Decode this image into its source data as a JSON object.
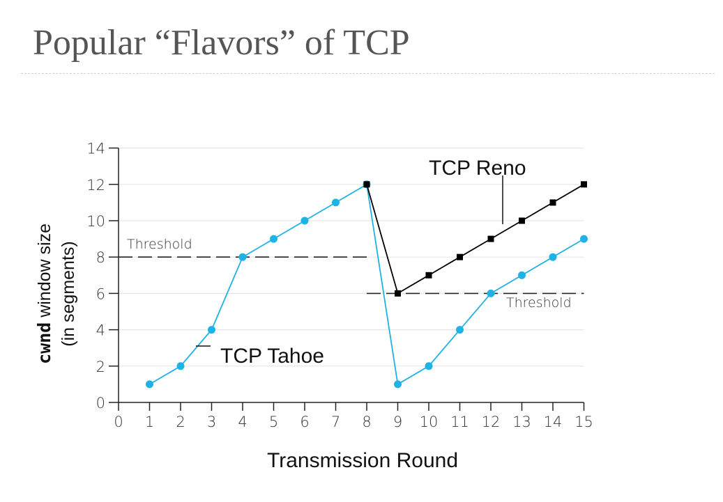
{
  "slide": {
    "title": "Popular “Flavors” of TCP"
  },
  "chart_data": {
    "type": "line",
    "xlabel": "Transmission Round",
    "ylabel_code": "cwnd",
    "ylabel_rest": " window size",
    "ylabel_line2": "(in segments)",
    "xlim": [
      0,
      15
    ],
    "ylim": [
      0,
      14
    ],
    "xticks": [
      0,
      1,
      2,
      3,
      4,
      5,
      6,
      7,
      8,
      9,
      10,
      11,
      12,
      13,
      14,
      15
    ],
    "yticks": [
      0,
      2,
      4,
      6,
      8,
      10,
      12,
      14
    ],
    "grid": "horizontal",
    "series": [
      {
        "name": "TCP Tahoe",
        "color": "#1fb2e5",
        "x": [
          1,
          2,
          3,
          4,
          5,
          6,
          7,
          8,
          9,
          10,
          11,
          12,
          13,
          14,
          15
        ],
        "y": [
          1,
          2,
          4,
          8,
          9,
          10,
          11,
          12,
          1,
          2,
          4,
          6,
          7,
          8,
          9
        ]
      },
      {
        "name": "TCP Reno",
        "color": "#000000",
        "x": [
          8,
          9,
          10,
          11,
          12,
          13,
          14,
          15
        ],
        "y": [
          12,
          6,
          7,
          8,
          9,
          10,
          11,
          12
        ]
      }
    ],
    "thresholds": [
      {
        "label": "Threshold",
        "value": 8,
        "x_range": [
          0,
          8
        ]
      },
      {
        "label": "Threshold",
        "value": 6,
        "x_range": [
          8,
          15
        ]
      }
    ],
    "annotations": {
      "reno_label": "TCP Reno",
      "tahoe_label": "TCP Tahoe"
    }
  }
}
